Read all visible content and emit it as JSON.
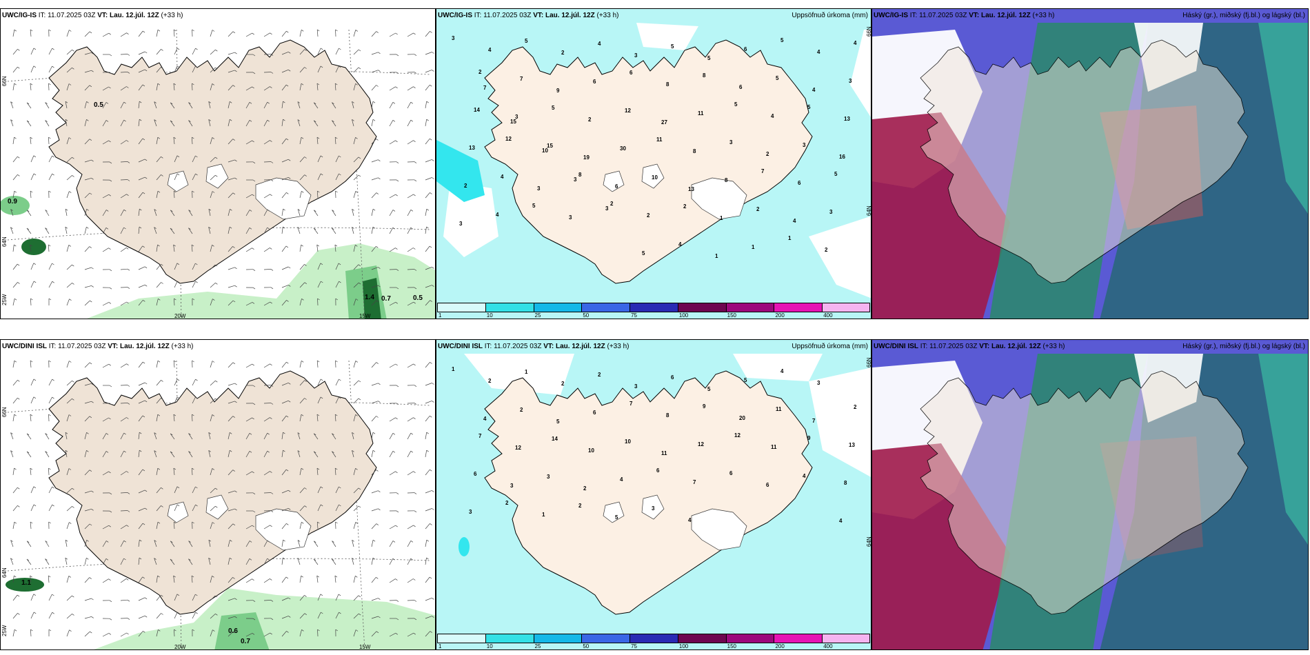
{
  "panels": [
    {
      "model": "UWC/IG-IS",
      "it_label": "IT:",
      "it": "11.07.2025 03Z",
      "vt_label": "VT:",
      "vt": "Lau. 12.júl. 12Z",
      "lead": "(+33 h)",
      "right": ""
    },
    {
      "model": "UWC/IG-IS",
      "it_label": "IT:",
      "it": "11.07.2025 03Z",
      "vt_label": "VT:",
      "vt": "Lau. 12.júl. 12Z",
      "lead": "(+33 h)",
      "right": "Uppsöfnuð úrkoma (mm)"
    },
    {
      "model": "UWC/IG-IS",
      "it_label": "IT:",
      "it": "11.07.2025 03Z",
      "vt_label": "VT:",
      "vt": "Lau. 12.júl. 12Z",
      "lead": "(+33 h)",
      "right": "Háský (gr.), miðský (fj.bl.) og lágský (bl.)"
    },
    {
      "model": "UWC/DINI ISL",
      "it_label": "IT:",
      "it": "11.07.2025 03Z",
      "vt_label": "VT:",
      "vt": "Lau. 12.júl. 12Z",
      "lead": "(+33 h)",
      "right": ""
    },
    {
      "model": "UWC/DINI ISL",
      "it_label": "IT:",
      "it": "11.07.2025 03Z",
      "vt_label": "VT:",
      "vt": "Lau. 12.júl. 12Z",
      "lead": "(+33 h)",
      "right": "Uppsöfnuð úrkoma (mm)"
    },
    {
      "model": "UWC/DINI ISL",
      "it_label": "IT:",
      "it": "11.07.2025 03Z",
      "vt_label": "VT:",
      "vt": "Lau. 12.júl. 12Z",
      "lead": "(+33 h)",
      "right": "Háský (gr.), miðský (fj.bl.) og lágský (bl.)"
    }
  ],
  "axis_labels": {
    "lat_66": "66N",
    "lat_64": "64N",
    "lat_25w": "25W",
    "lon_20w": "20W",
    "lon_15w": "15W",
    "lat_66_right": "66N",
    "lat_64_right": "64N"
  },
  "wind_labels_top": [
    "0.5",
    "0.9",
    "1.4",
    "0.7",
    "0.5"
  ],
  "wind_labels_bottom": [
    "1.1",
    "0.6",
    "0.7"
  ],
  "colorbar": {
    "ticks": [
      "1",
      "10",
      "25",
      "50",
      "75",
      "100",
      "150",
      "200",
      "400"
    ],
    "colors": [
      "#d8fbfb",
      "#33e0e6",
      "#14b8e8",
      "#3a66e6",
      "#2a2ab4",
      "#6e0650",
      "#9c087c",
      "#e614b4",
      "#f5b4f0"
    ]
  },
  "precip_top": [
    "3",
    "4",
    "5",
    "2",
    "4",
    "3",
    "5",
    "5",
    "6",
    "5",
    "4",
    "4",
    "7",
    "7",
    "9",
    "6",
    "6",
    "8",
    "8",
    "6",
    "5",
    "4",
    "3",
    "2",
    "3",
    "5",
    "2",
    "12",
    "27",
    "11",
    "5",
    "4",
    "5",
    "13",
    "14",
    "15",
    "15",
    "19",
    "30",
    "11",
    "8",
    "3",
    "2",
    "3",
    "16",
    "13",
    "12",
    "10",
    "8",
    "6",
    "10",
    "13",
    "8",
    "7",
    "6",
    "5",
    "2",
    "4",
    "3",
    "3",
    "2",
    "2",
    "2",
    "1",
    "2",
    "4",
    "3",
    "3",
    "4",
    "5",
    "3",
    "3",
    "5",
    "4",
    "1",
    "1",
    "1",
    "2"
  ],
  "precip_bottom": [
    "1",
    "2",
    "1",
    "2",
    "2",
    "3",
    "6",
    "5",
    "5",
    "4",
    "3",
    "2",
    "4",
    "2",
    "5",
    "6",
    "7",
    "8",
    "9",
    "20",
    "11",
    "7",
    "13",
    "7",
    "12",
    "14",
    "10",
    "10",
    "11",
    "12",
    "12",
    "11",
    "9",
    "8",
    "6",
    "3",
    "3",
    "2",
    "4",
    "6",
    "7",
    "6",
    "6",
    "4",
    "4",
    "3",
    "2",
    "1",
    "2",
    "5",
    "3",
    "4"
  ],
  "colors": {
    "land": "#efe3d6",
    "coast": "#000000",
    "sea": "#ffffff",
    "precip_light": "#b8f6f6",
    "precip_mid": "#33e6ee",
    "green_light": "#c8f0c8",
    "green_mid": "#7ccd8a",
    "green_dark": "#1e6e32",
    "cloud_high": "#ffffff",
    "cloud_mid": "#5a5ad4",
    "cloud_low": "#a01a4a",
    "cloud_green": "#2a8a6a"
  }
}
